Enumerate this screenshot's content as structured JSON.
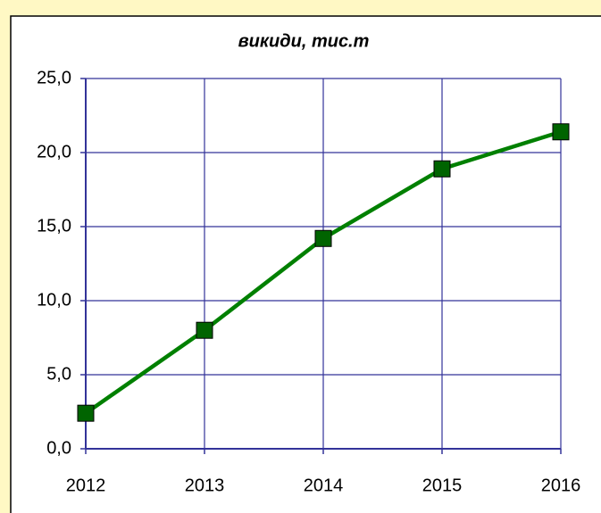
{
  "chart_data": {
    "type": "line",
    "title": "викиди, тис.т",
    "categories": [
      "2012",
      "2013",
      "2014",
      "2015",
      "2016"
    ],
    "series": [
      {
        "name": "викиди",
        "color": "#008000",
        "marker_color": "#006400",
        "values": [
          2.4,
          8.0,
          14.2,
          18.9,
          21.4
        ]
      }
    ],
    "ylim": [
      0,
      25
    ],
    "yticks": [
      {
        "value": 0,
        "label": "0,0"
      },
      {
        "value": 5,
        "label": "5,0"
      },
      {
        "value": 10,
        "label": "10,0"
      },
      {
        "value": 15,
        "label": "15,0"
      },
      {
        "value": 20,
        "label": "20,0"
      },
      {
        "value": 25,
        "label": "25,0"
      }
    ],
    "grid": true
  }
}
